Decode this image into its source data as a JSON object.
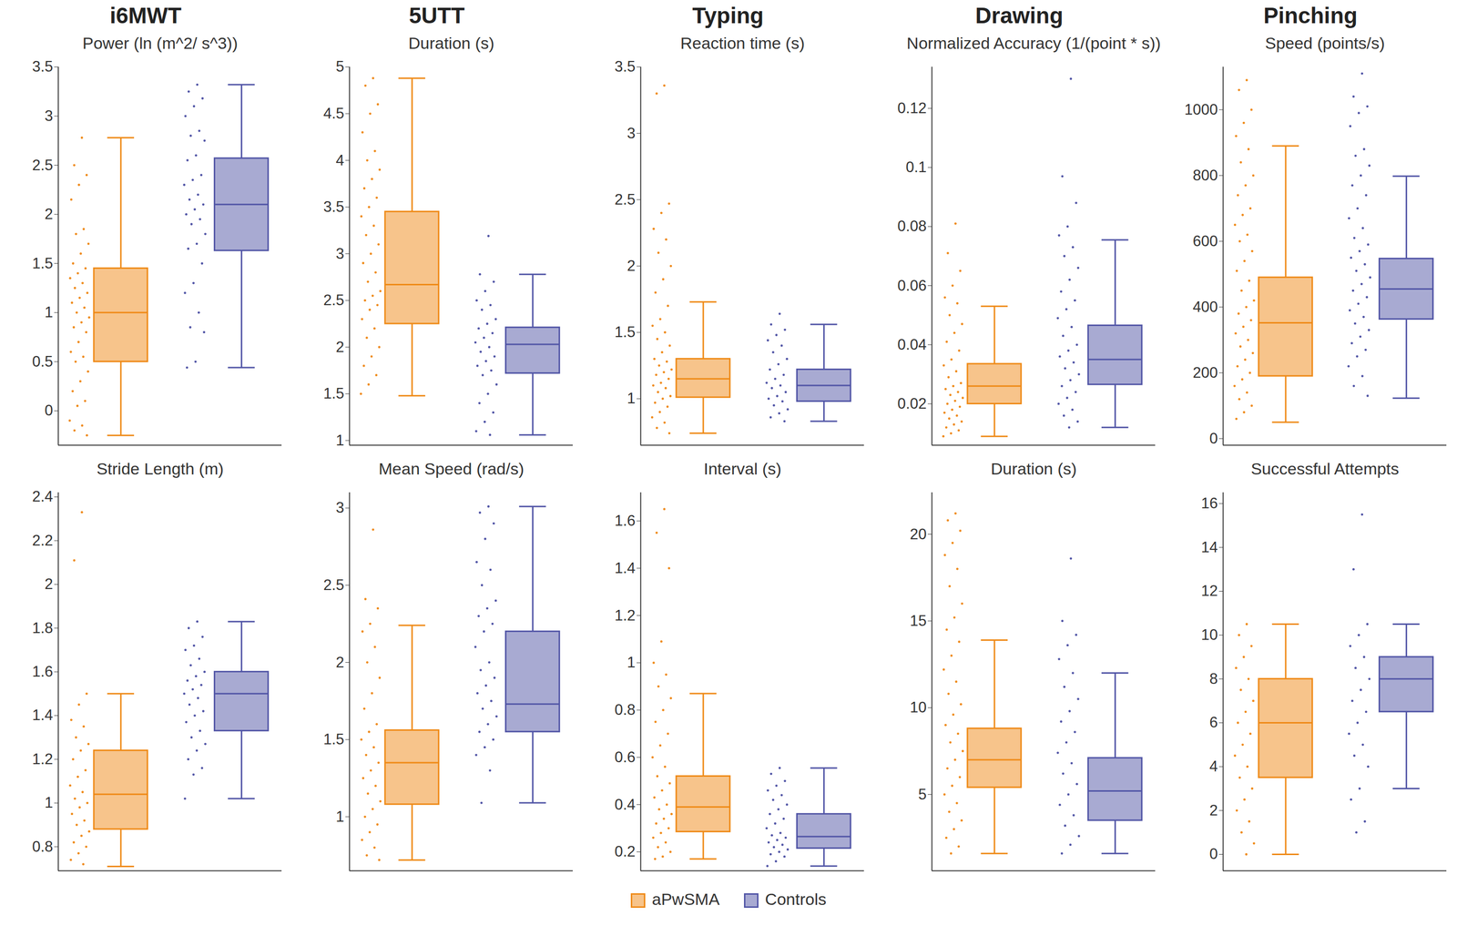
{
  "chart_data": {
    "type": "box",
    "legend": "bottom",
    "columns": [
      "i6MWT",
      "5UTT",
      "Typing",
      "Drawing",
      "Pinching"
    ],
    "panels": [
      {
        "title": "Power (ln (m^2/ s^3))",
        "ylim": [
          -0.35,
          3.5
        ],
        "yticks": [
          0,
          0.5,
          1,
          1.5,
          2,
          2.5,
          3,
          3.5
        ],
        "series": [
          {
            "name": "aPwSMA",
            "color": "#ef8a17",
            "min": -0.25,
            "q1": 0.5,
            "median": 1.0,
            "q3": 1.45,
            "max": 2.78,
            "points": [
              2.78,
              2.5,
              2.4,
              2.3,
              2.15,
              1.85,
              1.8,
              1.7,
              1.6,
              1.5,
              1.45,
              1.4,
              1.35,
              1.3,
              1.25,
              1.2,
              1.15,
              1.1,
              1.05,
              1.0,
              0.95,
              0.9,
              0.85,
              0.8,
              0.7,
              0.6,
              0.55,
              0.5,
              0.4,
              0.3,
              0.2,
              0.1,
              0.05,
              -0.1,
              -0.15,
              -0.2,
              -0.25
            ]
          },
          {
            "name": "Controls",
            "color": "#5155a6",
            "min": 0.44,
            "q1": 1.63,
            "median": 2.1,
            "q3": 2.57,
            "max": 3.32,
            "points": [
              3.32,
              3.25,
              3.18,
              3.1,
              3.0,
              2.85,
              2.8,
              2.75,
              2.6,
              2.55,
              2.4,
              2.35,
              2.3,
              2.2,
              2.15,
              2.1,
              2.05,
              2.0,
              1.95,
              1.9,
              1.8,
              1.7,
              1.65,
              1.5,
              1.3,
              1.2,
              1.0,
              0.85,
              0.8,
              0.5,
              0.44
            ]
          }
        ]
      },
      {
        "title": "Duration (s)",
        "ylim": [
          0.95,
          5
        ],
        "yticks": [
          1,
          1.5,
          2,
          2.5,
          3,
          3.5,
          4,
          4.5,
          5
        ],
        "series": [
          {
            "name": "aPwSMA",
            "color": "#ef8a17",
            "min": 1.48,
            "q1": 2.25,
            "median": 2.67,
            "q3": 3.45,
            "max": 4.88,
            "points": [
              4.88,
              4.8,
              4.6,
              4.5,
              4.3,
              4.1,
              4.0,
              3.9,
              3.8,
              3.7,
              3.6,
              3.5,
              3.4,
              3.3,
              3.2,
              3.1,
              3.0,
              2.9,
              2.8,
              2.7,
              2.6,
              2.55,
              2.5,
              2.45,
              2.4,
              2.3,
              2.2,
              2.1,
              2.0,
              1.9,
              1.8,
              1.7,
              1.6,
              1.5
            ]
          },
          {
            "name": "Controls",
            "color": "#5155a6",
            "min": 1.06,
            "q1": 1.72,
            "median": 2.03,
            "q3": 2.21,
            "max": 2.78,
            "points": [
              3.19,
              2.78,
              2.7,
              2.6,
              2.5,
              2.45,
              2.4,
              2.3,
              2.25,
              2.2,
              2.15,
              2.1,
              2.05,
              2.0,
              1.95,
              1.9,
              1.85,
              1.8,
              1.75,
              1.7,
              1.6,
              1.5,
              1.4,
              1.3,
              1.2,
              1.1,
              1.06
            ]
          }
        ]
      },
      {
        "title": "Reaction time (s)",
        "ylim": [
          0.65,
          3.5
        ],
        "yticks": [
          1,
          1.5,
          2,
          2.5,
          3,
          3.5
        ],
        "series": [
          {
            "name": "aPwSMA",
            "color": "#ef8a17",
            "min": 0.74,
            "q1": 1.01,
            "median": 1.15,
            "q3": 1.3,
            "max": 1.73,
            "points": [
              3.36,
              3.3,
              2.47,
              2.4,
              2.28,
              2.2,
              2.1,
              2.0,
              1.9,
              1.8,
              1.7,
              1.6,
              1.55,
              1.5,
              1.45,
              1.4,
              1.35,
              1.3,
              1.28,
              1.25,
              1.22,
              1.2,
              1.18,
              1.15,
              1.12,
              1.1,
              1.08,
              1.05,
              1.02,
              1.0,
              0.97,
              0.94,
              0.9,
              0.86,
              0.82,
              0.78,
              0.74
            ]
          },
          {
            "name": "Controls",
            "color": "#5155a6",
            "min": 0.83,
            "q1": 0.98,
            "median": 1.1,
            "q3": 1.22,
            "max": 1.56,
            "points": [
              1.64,
              1.56,
              1.52,
              1.48,
              1.44,
              1.4,
              1.35,
              1.3,
              1.26,
              1.22,
              1.18,
              1.15,
              1.12,
              1.1,
              1.08,
              1.05,
              1.02,
              1.0,
              0.98,
              0.95,
              0.92,
              0.89,
              0.86,
              0.83
            ]
          }
        ]
      },
      {
        "title": "Normalized Accuracy (1/(point * s))",
        "ylim": [
          0.006,
          0.134
        ],
        "yticks": [
          0.02,
          0.04,
          0.06,
          0.08,
          0.1,
          0.12
        ],
        "series": [
          {
            "name": "aPwSMA",
            "color": "#ef8a17",
            "min": 0.009,
            "q1": 0.02,
            "median": 0.026,
            "q3": 0.0335,
            "max": 0.053,
            "points": [
              0.081,
              0.071,
              0.065,
              0.06,
              0.056,
              0.054,
              0.05,
              0.047,
              0.044,
              0.041,
              0.038,
              0.035,
              0.033,
              0.031,
              0.029,
              0.027,
              0.026,
              0.025,
              0.024,
              0.023,
              0.022,
              0.021,
              0.02,
              0.019,
              0.018,
              0.017,
              0.016,
              0.015,
              0.014,
              0.013,
              0.012,
              0.011,
              0.01,
              0.009
            ]
          },
          {
            "name": "Controls",
            "color": "#5155a6",
            "min": 0.012,
            "q1": 0.0265,
            "median": 0.035,
            "q3": 0.0465,
            "max": 0.0755,
            "points": [
              0.13,
              0.097,
              0.088,
              0.08,
              0.077,
              0.073,
              0.07,
              0.066,
              0.062,
              0.058,
              0.055,
              0.052,
              0.049,
              0.046,
              0.043,
              0.04,
              0.038,
              0.036,
              0.034,
              0.032,
              0.03,
              0.028,
              0.026,
              0.024,
              0.022,
              0.02,
              0.018,
              0.016,
              0.014,
              0.012
            ]
          }
        ]
      },
      {
        "title": "Speed (points/s)",
        "ylim": [
          -20,
          1130
        ],
        "yticks": [
          0,
          200,
          400,
          600,
          800,
          1000
        ],
        "series": [
          {
            "name": "aPwSMA",
            "color": "#ef8a17",
            "min": 50,
            "q1": 190,
            "median": 352,
            "q3": 490,
            "max": 890,
            "points": [
              1090,
              1060,
              1000,
              960,
              920,
              880,
              840,
              800,
              770,
              740,
              700,
              680,
              650,
              620,
              600,
              570,
              540,
              510,
              480,
              450,
              420,
              400,
              380,
              360,
              340,
              320,
              300,
              280,
              260,
              240,
              220,
              200,
              180,
              160,
              140,
              120,
              100,
              80,
              60
            ]
          },
          {
            "name": "Controls",
            "color": "#5155a6",
            "min": 123,
            "q1": 363,
            "median": 455,
            "q3": 547,
            "max": 798,
            "points": [
              1110,
              1040,
              1010,
              990,
              950,
              880,
              860,
              830,
              800,
              770,
              740,
              700,
              670,
              640,
              610,
              590,
              570,
              550,
              530,
              510,
              490,
              470,
              450,
              430,
              410,
              390,
              370,
              350,
              330,
              310,
              290,
              270,
              250,
              220,
              190,
              160,
              130
            ]
          }
        ]
      },
      {
        "title": "Stride Length (m)",
        "ylim": [
          0.69,
          2.42
        ],
        "yticks": [
          0.8,
          1,
          1.2,
          1.4,
          1.6,
          1.8,
          2,
          2.2,
          2.4
        ],
        "series": [
          {
            "name": "aPwSMA",
            "color": "#ef8a17",
            "min": 0.71,
            "q1": 0.88,
            "median": 1.04,
            "q3": 1.24,
            "max": 1.5,
            "points": [
              2.33,
              2.11,
              1.5,
              1.45,
              1.38,
              1.35,
              1.3,
              1.27,
              1.24,
              1.2,
              1.15,
              1.12,
              1.08,
              1.05,
              1.02,
              1.0,
              0.98,
              0.95,
              0.92,
              0.9,
              0.87,
              0.85,
              0.82,
              0.8,
              0.77,
              0.74,
              0.72
            ]
          },
          {
            "name": "Controls",
            "color": "#5155a6",
            "min": 1.02,
            "q1": 1.33,
            "median": 1.5,
            "q3": 1.6,
            "max": 1.83,
            "points": [
              1.83,
              1.8,
              1.76,
              1.72,
              1.7,
              1.66,
              1.63,
              1.6,
              1.58,
              1.56,
              1.54,
              1.52,
              1.5,
              1.48,
              1.45,
              1.42,
              1.4,
              1.37,
              1.33,
              1.3,
              1.27,
              1.24,
              1.2,
              1.16,
              1.13,
              1.02
            ]
          }
        ]
      },
      {
        "title": "Mean Speed (rad/s)",
        "ylim": [
          0.65,
          3.1
        ],
        "yticks": [
          1,
          1.5,
          2,
          2.5,
          3
        ],
        "series": [
          {
            "name": "aPwSMA",
            "color": "#ef8a17",
            "min": 0.72,
            "q1": 1.08,
            "median": 1.35,
            "q3": 1.56,
            "max": 2.24,
            "points": [
              2.86,
              2.41,
              2.35,
              2.25,
              2.2,
              2.1,
              2.0,
              1.9,
              1.8,
              1.7,
              1.6,
              1.55,
              1.5,
              1.45,
              1.4,
              1.35,
              1.3,
              1.25,
              1.2,
              1.15,
              1.1,
              1.05,
              1.0,
              0.95,
              0.9,
              0.85,
              0.8,
              0.75,
              0.72
            ]
          },
          {
            "name": "Controls",
            "color": "#5155a6",
            "min": 1.09,
            "q1": 1.55,
            "median": 1.73,
            "q3": 2.2,
            "max": 3.01,
            "points": [
              3.01,
              2.97,
              2.9,
              2.8,
              2.65,
              2.6,
              2.5,
              2.4,
              2.35,
              2.3,
              2.25,
              2.2,
              2.1,
              2.0,
              1.95,
              1.9,
              1.85,
              1.8,
              1.75,
              1.7,
              1.65,
              1.6,
              1.55,
              1.5,
              1.45,
              1.4,
              1.3,
              1.09
            ]
          }
        ]
      },
      {
        "title": "Interval (s)",
        "ylim": [
          0.12,
          1.72
        ],
        "yticks": [
          0.2,
          0.4,
          0.6,
          0.8,
          1,
          1.2,
          1.4,
          1.6
        ],
        "series": [
          {
            "name": "aPwSMA",
            "color": "#ef8a17",
            "min": 0.17,
            "q1": 0.285,
            "median": 0.39,
            "q3": 0.52,
            "max": 0.87,
            "points": [
              1.65,
              1.55,
              1.4,
              1.09,
              1.0,
              0.95,
              0.9,
              0.85,
              0.8,
              0.75,
              0.7,
              0.65,
              0.6,
              0.56,
              0.52,
              0.49,
              0.46,
              0.43,
              0.4,
              0.38,
              0.36,
              0.34,
              0.32,
              0.3,
              0.28,
              0.26,
              0.24,
              0.22,
              0.2,
              0.18,
              0.17
            ]
          },
          {
            "name": "Controls",
            "color": "#5155a6",
            "min": 0.14,
            "q1": 0.215,
            "median": 0.265,
            "q3": 0.36,
            "max": 0.555,
            "points": [
              0.555,
              0.53,
              0.5,
              0.48,
              0.46,
              0.44,
              0.42,
              0.4,
              0.38,
              0.36,
              0.34,
              0.32,
              0.3,
              0.28,
              0.27,
              0.26,
              0.25,
              0.24,
              0.23,
              0.22,
              0.21,
              0.2,
              0.19,
              0.18,
              0.16,
              0.14
            ]
          }
        ]
      },
      {
        "title": "Duration (s)",
        "ylim": [
          0.6,
          22.4
        ],
        "yticks": [
          5,
          10,
          15,
          20
        ],
        "series": [
          {
            "name": "aPwSMA",
            "color": "#ef8a17",
            "min": 1.6,
            "q1": 5.4,
            "median": 7.0,
            "q3": 8.8,
            "max": 13.9,
            "points": [
              21.2,
              20.8,
              20.2,
              19.5,
              18.8,
              18,
              17,
              16,
              15.2,
              14.5,
              13.8,
              13,
              12.2,
              11.5,
              10.8,
              10.2,
              9.6,
              9,
              8.5,
              8,
              7.5,
              7,
              6.5,
              6,
              5.5,
              5,
              4.5,
              4,
              3.5,
              3,
              2.5,
              2,
              1.6
            ]
          },
          {
            "name": "Controls",
            "color": "#5155a6",
            "min": 1.6,
            "q1": 3.5,
            "median": 5.2,
            "q3": 7.1,
            "max": 12.0,
            "points": [
              18.6,
              15,
              14.2,
              13.6,
              12.8,
              12,
              11.2,
              10.5,
              9.8,
              9.2,
              8.6,
              8,
              7.4,
              6.8,
              6.2,
              5.6,
              5,
              4.4,
              3.8,
              3.2,
              2.6,
              2.1,
              1.6
            ]
          }
        ]
      },
      {
        "title": "Successful Attempts",
        "ylim": [
          -0.75,
          16.5
        ],
        "yticks": [
          0,
          2,
          4,
          6,
          8,
          10,
          12,
          14,
          16
        ],
        "series": [
          {
            "name": "aPwSMA",
            "color": "#ef8a17",
            "min": 0,
            "q1": 3.5,
            "median": 6,
            "q3": 8,
            "max": 10.5,
            "points": [
              10.5,
              10,
              9.5,
              9,
              8.5,
              8,
              7.5,
              7,
              6.5,
              6,
              5.5,
              5,
              4.5,
              4,
              3.5,
              3,
              2.5,
              2,
              1.5,
              1,
              0.5,
              0
            ]
          },
          {
            "name": "Controls",
            "color": "#5155a6",
            "min": 3,
            "q1": 6.5,
            "median": 8,
            "q3": 9,
            "max": 10.5,
            "points": [
              15.5,
              13,
              10.5,
              10,
              9.5,
              9,
              8.5,
              8,
              7.5,
              7,
              6.5,
              6,
              5.5,
              5,
              4.5,
              4,
              3,
              2.5,
              1.5,
              1
            ]
          }
        ]
      }
    ]
  }
}
